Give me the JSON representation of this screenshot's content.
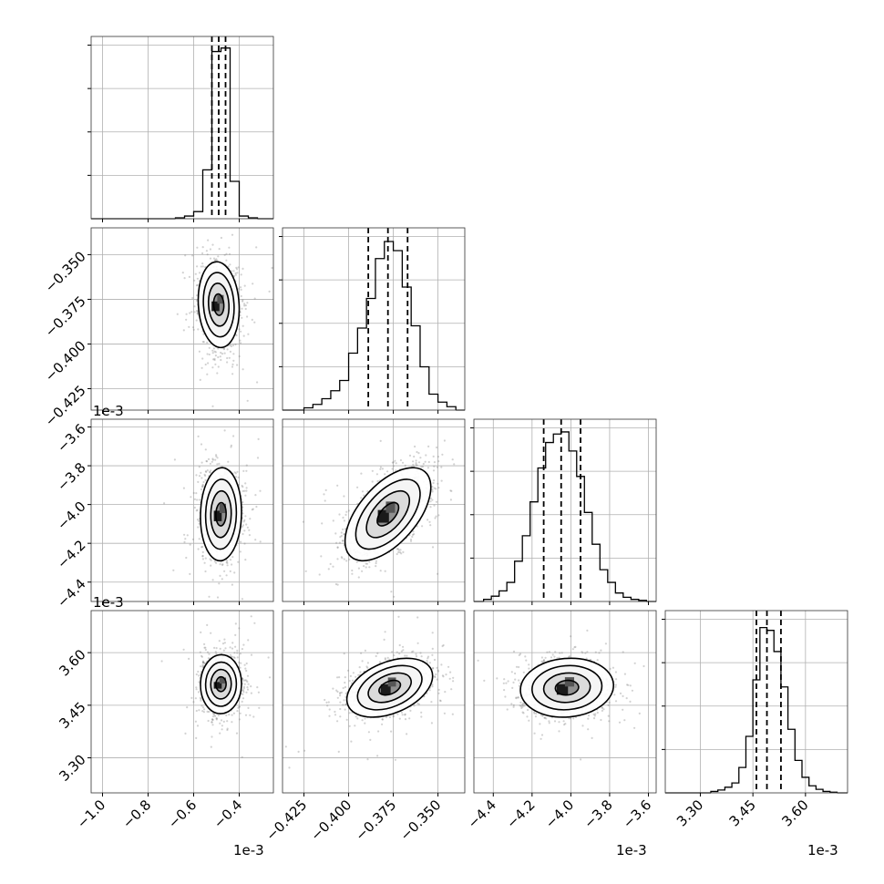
{
  "figure": {
    "type": "corner-plot",
    "colors": {
      "line": "#000000",
      "grid": "#b0b0b0",
      "points": "#7f7f7f",
      "background": "#ffffff"
    },
    "dimensions": 4,
    "offset_labels": {
      "row1_y": "1e-3",
      "row2_y": "1e-3",
      "col0_x": "1e-3",
      "col2_x": "1e-3",
      "col3_x": "1e-3"
    }
  },
  "chart_data": {
    "type": "corner",
    "grid": true,
    "parameters": [
      {
        "range": [
          -1.05,
          -0.25
        ],
        "ticks": [
          -1.0,
          -0.8,
          -0.6,
          -0.4
        ],
        "tick_labels": [
          "−1.0",
          "−0.8",
          "−0.6",
          "−0.4"
        ],
        "quantiles": [
          -0.52,
          -0.49,
          -0.46
        ],
        "hist_x": [
          -0.66,
          -0.62,
          -0.58,
          -0.54,
          -0.5,
          -0.46,
          -0.42,
          -0.38,
          -0.34
        ],
        "hist_counts": [
          1,
          3,
          8,
          55,
          188,
          192,
          42,
          3,
          1
        ],
        "hist_ymax": 205
      },
      {
        "range": [
          -0.437,
          -0.335
        ],
        "ticks": [
          -0.425,
          -0.4,
          -0.375,
          -0.35
        ],
        "tick_labels": [
          "−0.425",
          "−0.400",
          "−0.375",
          "−0.350"
        ],
        "quantiles": [
          -0.389,
          -0.378,
          -0.367
        ],
        "hist_x": [
          -0.4225,
          -0.4175,
          -0.4125,
          -0.4075,
          -0.4025,
          -0.3975,
          -0.3925,
          -0.3875,
          -0.3825,
          -0.3775,
          -0.3725,
          -0.3675,
          -0.3625,
          -0.3575,
          -0.3525,
          -0.3475,
          -0.3425
        ],
        "hist_counts": [
          2,
          5,
          10,
          17,
          26,
          50,
          72,
          98,
          133,
          148,
          140,
          108,
          74,
          38,
          14,
          7,
          3
        ],
        "hist_ymax": 160
      },
      {
        "range": [
          -4.5,
          -3.56
        ],
        "ticks": [
          -4.4,
          -4.2,
          -4.0,
          -3.8,
          -3.6
        ],
        "tick_labels": [
          "−4.4",
          "−4.2",
          "−4.0",
          "−3.8",
          "−3.6"
        ],
        "quantiles": [
          -4.14,
          -4.05,
          -3.95
        ],
        "hist_x": [
          -4.43,
          -4.39,
          -4.35,
          -4.31,
          -4.27,
          -4.23,
          -4.19,
          -4.15,
          -4.11,
          -4.07,
          -4.03,
          -3.99,
          -3.95,
          -3.91,
          -3.87,
          -3.83,
          -3.79,
          -3.75,
          -3.71,
          -3.67,
          -3.63
        ],
        "hist_counts": [
          2,
          5,
          10,
          18,
          38,
          62,
          94,
          126,
          150,
          158,
          160,
          142,
          118,
          84,
          54,
          30,
          18,
          8,
          4,
          2,
          1
        ],
        "hist_ymax": 172
      },
      {
        "range": [
          3.2,
          3.72
        ],
        "ticks": [
          3.3,
          3.45,
          3.6
        ],
        "tick_labels": [
          "3.30",
          "3.45",
          "3.60"
        ],
        "quantiles": [
          3.46,
          3.49,
          3.53
        ],
        "hist_x": [
          3.34,
          3.36,
          3.38,
          3.4,
          3.42,
          3.44,
          3.46,
          3.48,
          3.5,
          3.52,
          3.54,
          3.56,
          3.58,
          3.6,
          3.62,
          3.64,
          3.66,
          3.68
        ],
        "hist_counts": [
          2,
          4,
          8,
          14,
          36,
          80,
          160,
          234,
          230,
          200,
          150,
          90,
          46,
          22,
          10,
          5,
          2,
          1
        ],
        "hist_ymax": 258
      }
    ],
    "pairs": [
      {
        "row": 1,
        "col": 0,
        "mean": [
          -0.49,
          -0.378
        ],
        "std": [
          0.045,
          0.012
        ],
        "corr": -0.1
      },
      {
        "row": 2,
        "col": 0,
        "mean": [
          -0.48,
          -4.05
        ],
        "std": [
          0.045,
          0.12
        ],
        "corr": 0.05
      },
      {
        "row": 2,
        "col": 1,
        "mean": [
          -0.378,
          -4.05
        ],
        "std": [
          0.012,
          0.12
        ],
        "corr": 0.58
      },
      {
        "row": 3,
        "col": 0,
        "mean": [
          -0.48,
          3.51
        ],
        "std": [
          0.045,
          0.042
        ],
        "corr": 0.02
      },
      {
        "row": 3,
        "col": 1,
        "mean": [
          -0.377,
          3.5
        ],
        "std": [
          0.012,
          0.042
        ],
        "corr": 0.4
      },
      {
        "row": 3,
        "col": 2,
        "mean": [
          -4.02,
          3.5
        ],
        "std": [
          0.12,
          0.042
        ],
        "corr": 0.08
      }
    ],
    "contour_levels_sigma": [
      0.5,
      1.0,
      1.5,
      2.0
    ]
  }
}
